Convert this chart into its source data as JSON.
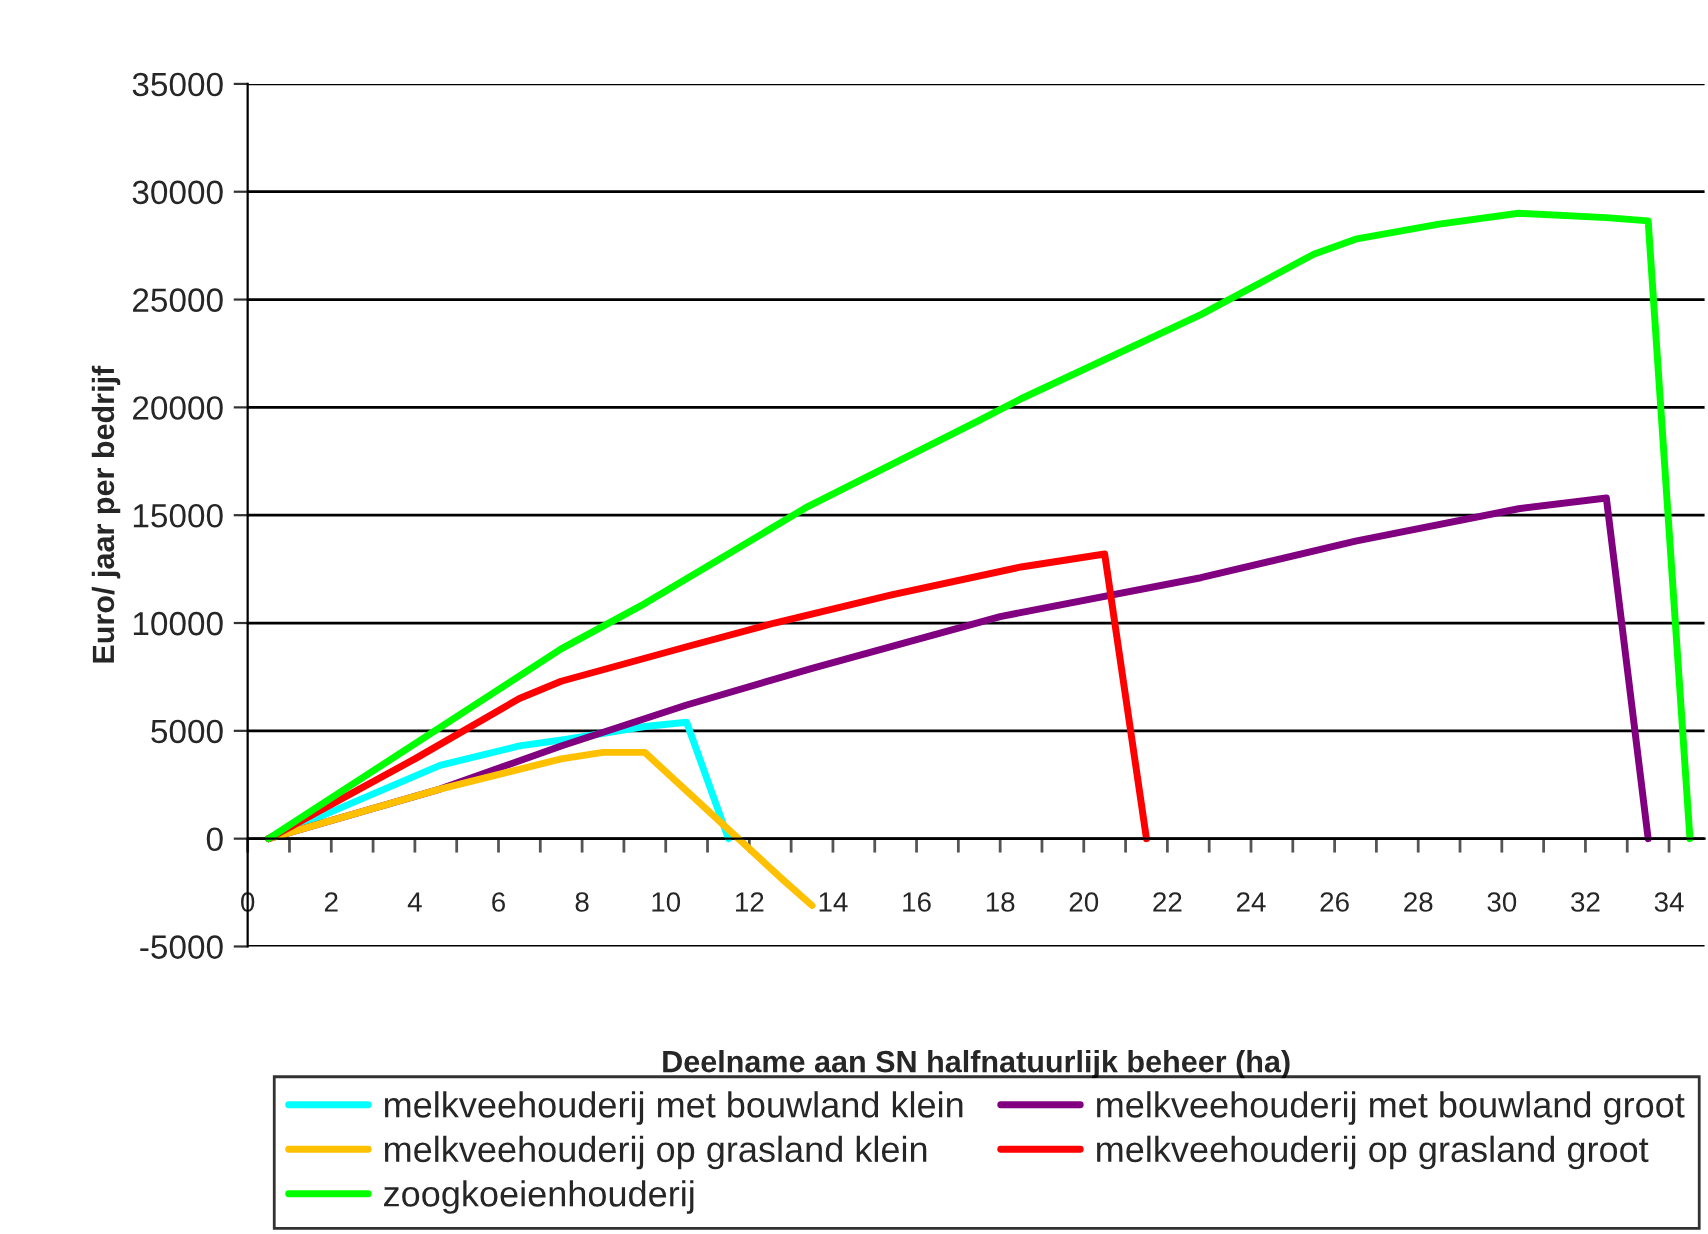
{
  "chart_data": {
    "type": "line",
    "xlabel": "Deelname aan SN halfnatuurlijk beheer (ha)",
    "ylabel": "Euro/ jaar per bedrijf",
    "xlim": [
      0,
      34.85
    ],
    "ylim": [
      -5000,
      35000
    ],
    "xticks": [
      0,
      {
        "value": 1,
        "label": null
      },
      2,
      {
        "value": 3,
        "label": null
      },
      4,
      {
        "value": 5,
        "label": null
      },
      6,
      {
        "value": 7,
        "label": null
      },
      8,
      {
        "value": 9,
        "label": null
      },
      10,
      {
        "value": 11,
        "label": null
      },
      12,
      {
        "value": 13,
        "label": null
      },
      14,
      {
        "value": 15,
        "label": null
      },
      16,
      {
        "value": 17,
        "label": null
      },
      18,
      {
        "value": 19,
        "label": null
      },
      20,
      {
        "value": 21,
        "label": null
      },
      22,
      {
        "value": 23,
        "label": null
      },
      24,
      {
        "value": 25,
        "label": null
      },
      26,
      {
        "value": 27,
        "label": null
      },
      28,
      {
        "value": 29,
        "label": null
      },
      30,
      {
        "value": 31,
        "label": null
      },
      32,
      {
        "value": 33,
        "label": null
      },
      34
    ],
    "yticks": [
      -5000,
      0,
      5000,
      10000,
      15000,
      20000,
      25000,
      30000,
      35000
    ],
    "grid": "y",
    "legend": "bottom",
    "marker": "none",
    "line_style": "solid",
    "series": [
      {
        "name": "melkveehouderij met bouwland klein",
        "color": "#00ffff",
        "x": [
          0.5,
          4.6,
          6.5,
          7.6,
          9.5,
          10.5,
          11.5
        ],
        "values": [
          0,
          3400,
          4300,
          4600,
          5200,
          5400,
          0
        ]
      },
      {
        "name": "melkveehouderij met bouwland groot",
        "color": "#800080",
        "x": [
          0.5,
          4.6,
          7.5,
          10.5,
          13.5,
          18,
          22.8,
          26.5,
          30.4,
          32.5,
          33.5
        ],
        "values": [
          0,
          2300,
          4300,
          6200,
          7900,
          10300,
          12100,
          13800,
          15300,
          15800,
          0
        ]
      },
      {
        "name": "melkveehouderij op grasland klein",
        "color": "#ffc000",
        "x": [
          0.5,
          4.6,
          7.5,
          8.5,
          9.5,
          12.8,
          13.5
        ],
        "values": [
          0,
          2300,
          3700,
          4000,
          4000,
          -1900,
          -3100
        ]
      },
      {
        "name": "melkveehouderij op grasland groot",
        "color": "#ff0000",
        "x": [
          0.5,
          4,
          6.5,
          7.5,
          10.5,
          12.6,
          15.4,
          18.5,
          20.5,
          21.5
        ],
        "values": [
          0,
          3700,
          6500,
          7300,
          8900,
          10000,
          11300,
          12600,
          13200,
          0
        ]
      },
      {
        "name": "zoogkoeienhouderij",
        "color": "#00ff00",
        "x": [
          0.5,
          7.5,
          9.5,
          13.4,
          17.5,
          18.5,
          22.8,
          25.5,
          26.5,
          28.5,
          30.4,
          32.5,
          33.5,
          34.5
        ],
        "values": [
          0,
          8800,
          10900,
          15400,
          19400,
          20400,
          24300,
          27100,
          27800,
          28500,
          29000,
          28800,
          28650,
          0
        ]
      }
    ]
  }
}
